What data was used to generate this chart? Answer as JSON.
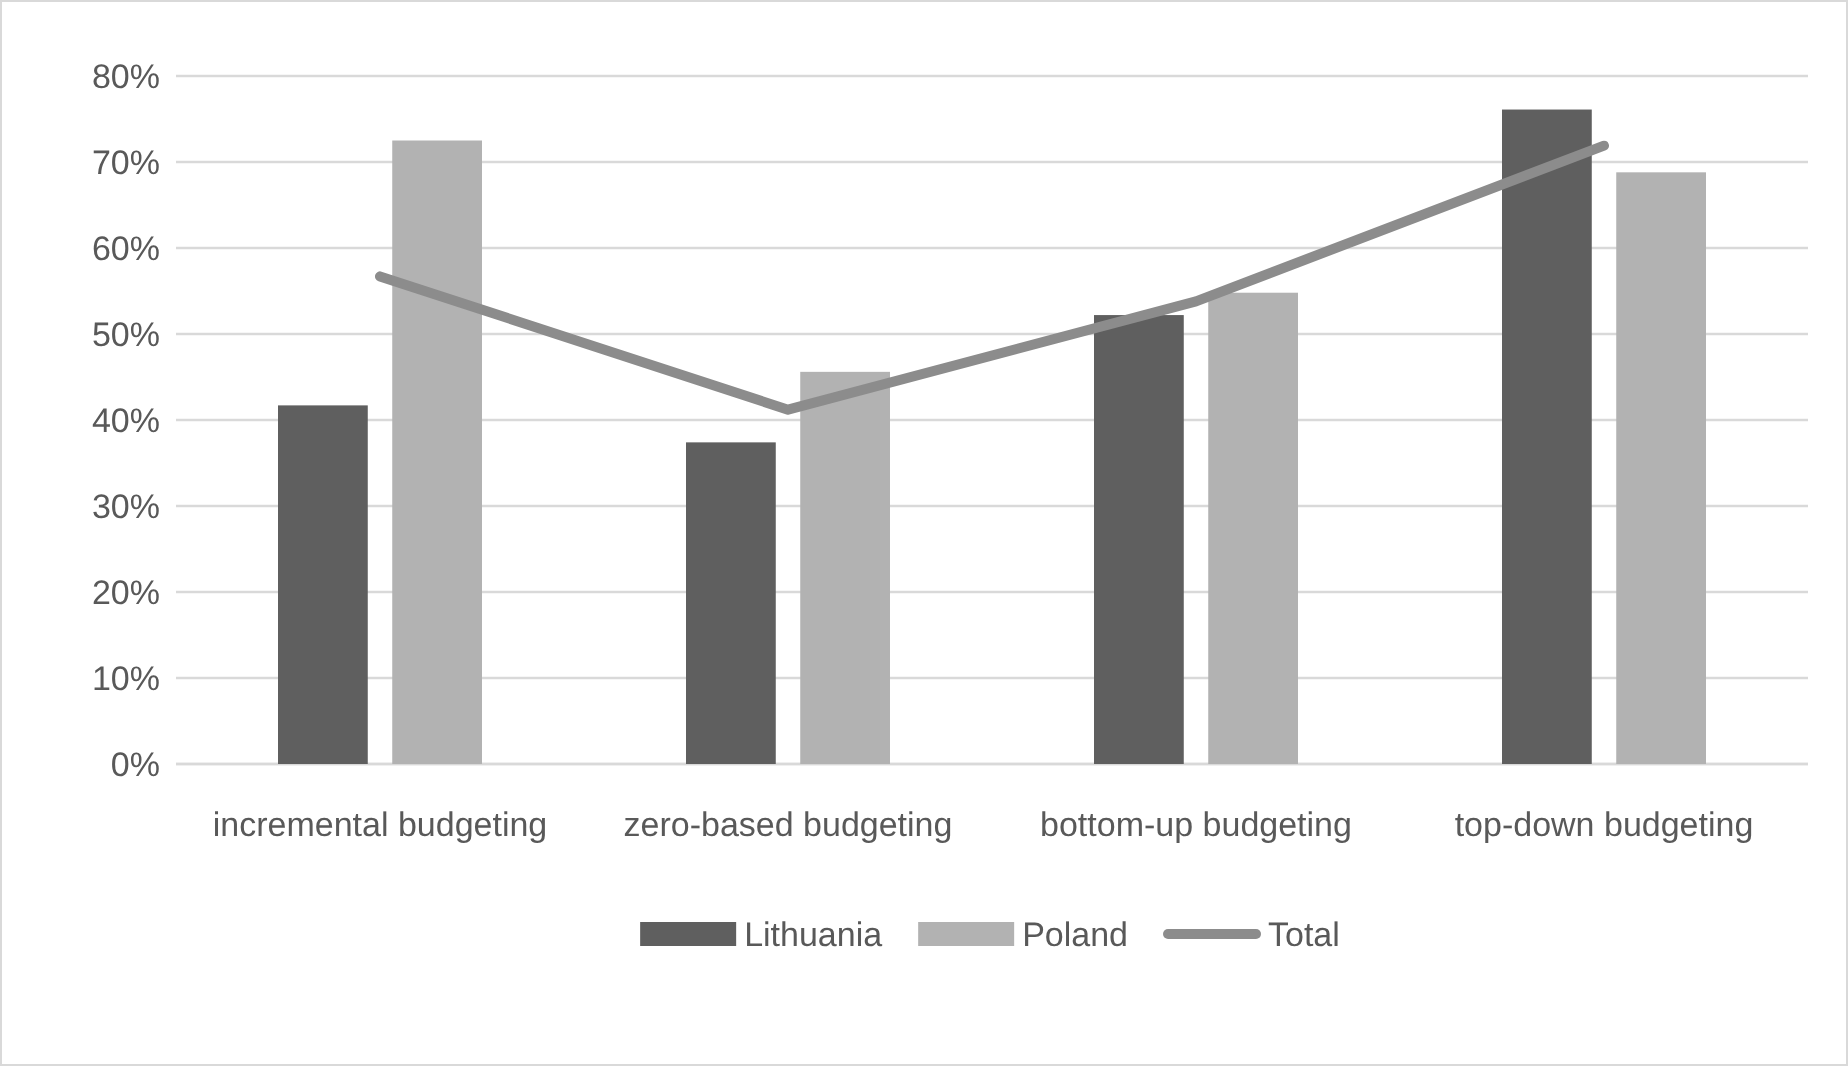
{
  "chart_data": {
    "type": "bar",
    "categories": [
      "incremental budgeting",
      "zero-based budgeting",
      "bottom-up budgeting",
      "top-down budgeting"
    ],
    "series": [
      {
        "name": "Lithuania",
        "color": "#5f5f5f",
        "values": [
          41.7,
          37.4,
          52.2,
          76.1
        ]
      },
      {
        "name": "Poland",
        "color": "#b2b2b2",
        "values": [
          72.5,
          45.6,
          54.8,
          68.8
        ]
      },
      {
        "name": "Total",
        "type": "line",
        "color": "#8c8c8c",
        "values": [
          56.7,
          41.2,
          53.8,
          71.9
        ]
      }
    ],
    "ylim": [
      0,
      80
    ],
    "yticks": [
      {
        "value": 0,
        "label": "0%"
      },
      {
        "value": 10,
        "label": "10%"
      },
      {
        "value": 20,
        "label": "20%"
      },
      {
        "value": 30,
        "label": "30%"
      },
      {
        "value": 40,
        "label": "40%"
      },
      {
        "value": 50,
        "label": "50%"
      },
      {
        "value": 60,
        "label": "60%"
      },
      {
        "value": 70,
        "label": "70%"
      },
      {
        "value": 80,
        "label": "80%"
      }
    ],
    "grid": "y",
    "legend": "bottom",
    "marker": "none"
  }
}
